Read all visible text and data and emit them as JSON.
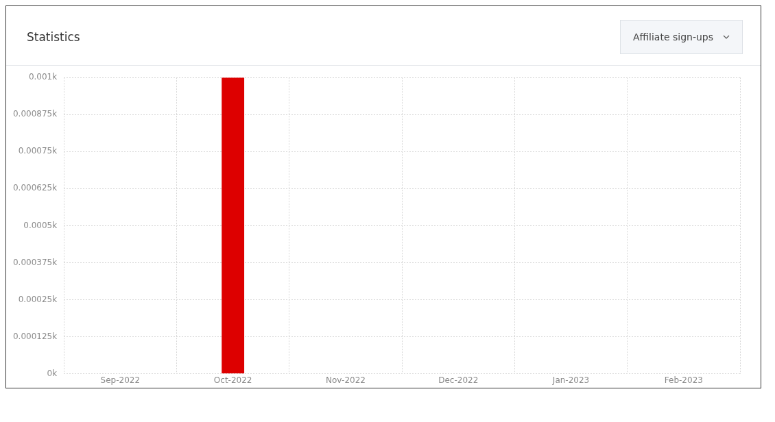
{
  "chart_data": {
    "type": "bar",
    "title": "Statistics",
    "subtitle": "Affiliate sign-ups",
    "categories": [
      "Sep-2022",
      "Oct-2022",
      "Nov-2022",
      "Dec-2022",
      "Jan-2023",
      "Feb-2023"
    ],
    "values": [
      0,
      0.001,
      0,
      0,
      0,
      0
    ],
    "color": "#dd0000",
    "ylim": [
      0,
      0.001
    ],
    "yticks": [
      {
        "value": 0,
        "label": "0k"
      },
      {
        "value": 0.000125,
        "label": "0.000125k"
      },
      {
        "value": 0.00025,
        "label": "0.00025k"
      },
      {
        "value": 0.000375,
        "label": "0.000375k"
      },
      {
        "value": 0.0005,
        "label": "0.0005k"
      },
      {
        "value": 0.000625,
        "label": "0.000625k"
      },
      {
        "value": 0.00075,
        "label": "0.00075k"
      },
      {
        "value": 0.000875,
        "label": "0.000875k"
      },
      {
        "value": 0.001,
        "label": "0.001k"
      }
    ],
    "grid": true
  }
}
